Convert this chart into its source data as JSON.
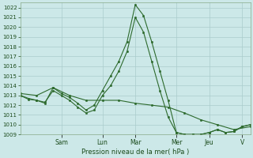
{
  "background_color": "#cce8e8",
  "grid_color": "#aacccc",
  "line_color": "#2d6a2d",
  "marker_color": "#2d6a2d",
  "xlabel": "Pression niveau de la mer( hPa )",
  "ylim": [
    1009,
    1022.5
  ],
  "yticks": [
    1009,
    1010,
    1011,
    1012,
    1013,
    1014,
    1015,
    1016,
    1017,
    1018,
    1019,
    1020,
    1021,
    1022
  ],
  "xlim": [
    0,
    14
  ],
  "day_labels": [
    "Sam",
    "Lun",
    "Mar",
    "Mer",
    "Jeu",
    "V"
  ],
  "day_positions": [
    2.5,
    5.0,
    7.0,
    9.5,
    11.5,
    13.5
  ],
  "series1": {
    "x": [
      0,
      0.5,
      1,
      1.5,
      2,
      2.5,
      3,
      3.5,
      4,
      4.5,
      5,
      5.5,
      6,
      6.5,
      7,
      7.5,
      8,
      8.5,
      9,
      9.5,
      10,
      10.5,
      11,
      11.5,
      12,
      12.5,
      13,
      13.5,
      14
    ],
    "y": [
      1013.0,
      1012.6,
      1012.5,
      1012.2,
      1013.8,
      1013.2,
      1012.8,
      1012.2,
      1011.5,
      1012.0,
      1013.5,
      1015.0,
      1016.5,
      1018.5,
      1022.3,
      1021.2,
      1018.5,
      1015.5,
      1012.5,
      1009.2,
      1009.0,
      1009.0,
      1009.0,
      1009.2,
      1009.5,
      1009.2,
      1009.3,
      1009.8,
      1010.0
    ]
  },
  "series2": {
    "x": [
      0,
      0.5,
      1,
      1.5,
      2,
      2.5,
      3,
      3.5,
      4,
      4.5,
      5,
      5.5,
      6,
      6.5,
      7,
      7.5,
      8,
      8.5,
      9,
      9.5,
      10,
      10.5,
      11,
      11.5,
      12,
      12.5,
      13,
      13.5,
      14
    ],
    "y": [
      1013.0,
      1012.7,
      1012.5,
      1012.3,
      1013.5,
      1013.0,
      1012.5,
      1011.8,
      1011.2,
      1011.5,
      1013.0,
      1014.0,
      1015.5,
      1017.5,
      1021.0,
      1019.5,
      1016.5,
      1013.5,
      1010.8,
      1009.2,
      1009.0,
      1009.0,
      1009.0,
      1009.2,
      1009.5,
      1009.2,
      1009.3,
      1009.8,
      1010.0
    ]
  },
  "series3": {
    "x": [
      0,
      1,
      2,
      3,
      4,
      5,
      6,
      7,
      8,
      9,
      10,
      11,
      12,
      13,
      14
    ],
    "y": [
      1013.2,
      1013.0,
      1013.8,
      1013.0,
      1012.5,
      1012.5,
      1012.5,
      1012.2,
      1012.0,
      1011.8,
      1011.2,
      1010.5,
      1010.0,
      1009.5,
      1009.8
    ]
  }
}
